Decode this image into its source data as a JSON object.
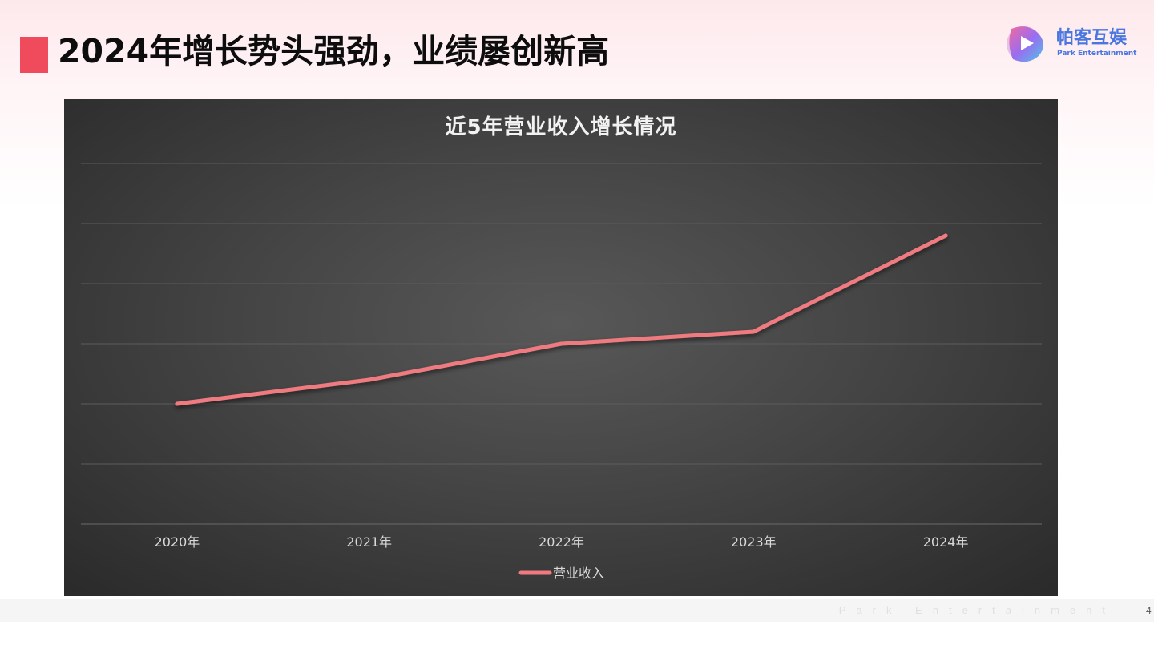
{
  "slide": {
    "title": "2024年增长势头强劲，业绩屡创新高",
    "footer_text": "Park Entertainment",
    "page_number": "4"
  },
  "logo": {
    "name": "帕客互娱",
    "subtitle": "Park Entertainment"
  },
  "colors": {
    "accent": "#ef4b5c",
    "series_line": "#ef7a80",
    "panel_background": "#454545",
    "logo_blue": "#4a76e0"
  },
  "chart_data": {
    "type": "line",
    "title": "近5年营业收入增长情况",
    "categories": [
      "2020年",
      "2021年",
      "2022年",
      "2023年",
      "2024年"
    ],
    "series": [
      {
        "name": "营业收入",
        "values": [
          2,
          2.4,
          3,
          3.2,
          4.8
        ]
      }
    ],
    "xlabel": "",
    "ylabel": "",
    "ylim": [
      0,
      6
    ],
    "y_tick_labels_shown": false,
    "grid": true,
    "legend": "bottom"
  }
}
